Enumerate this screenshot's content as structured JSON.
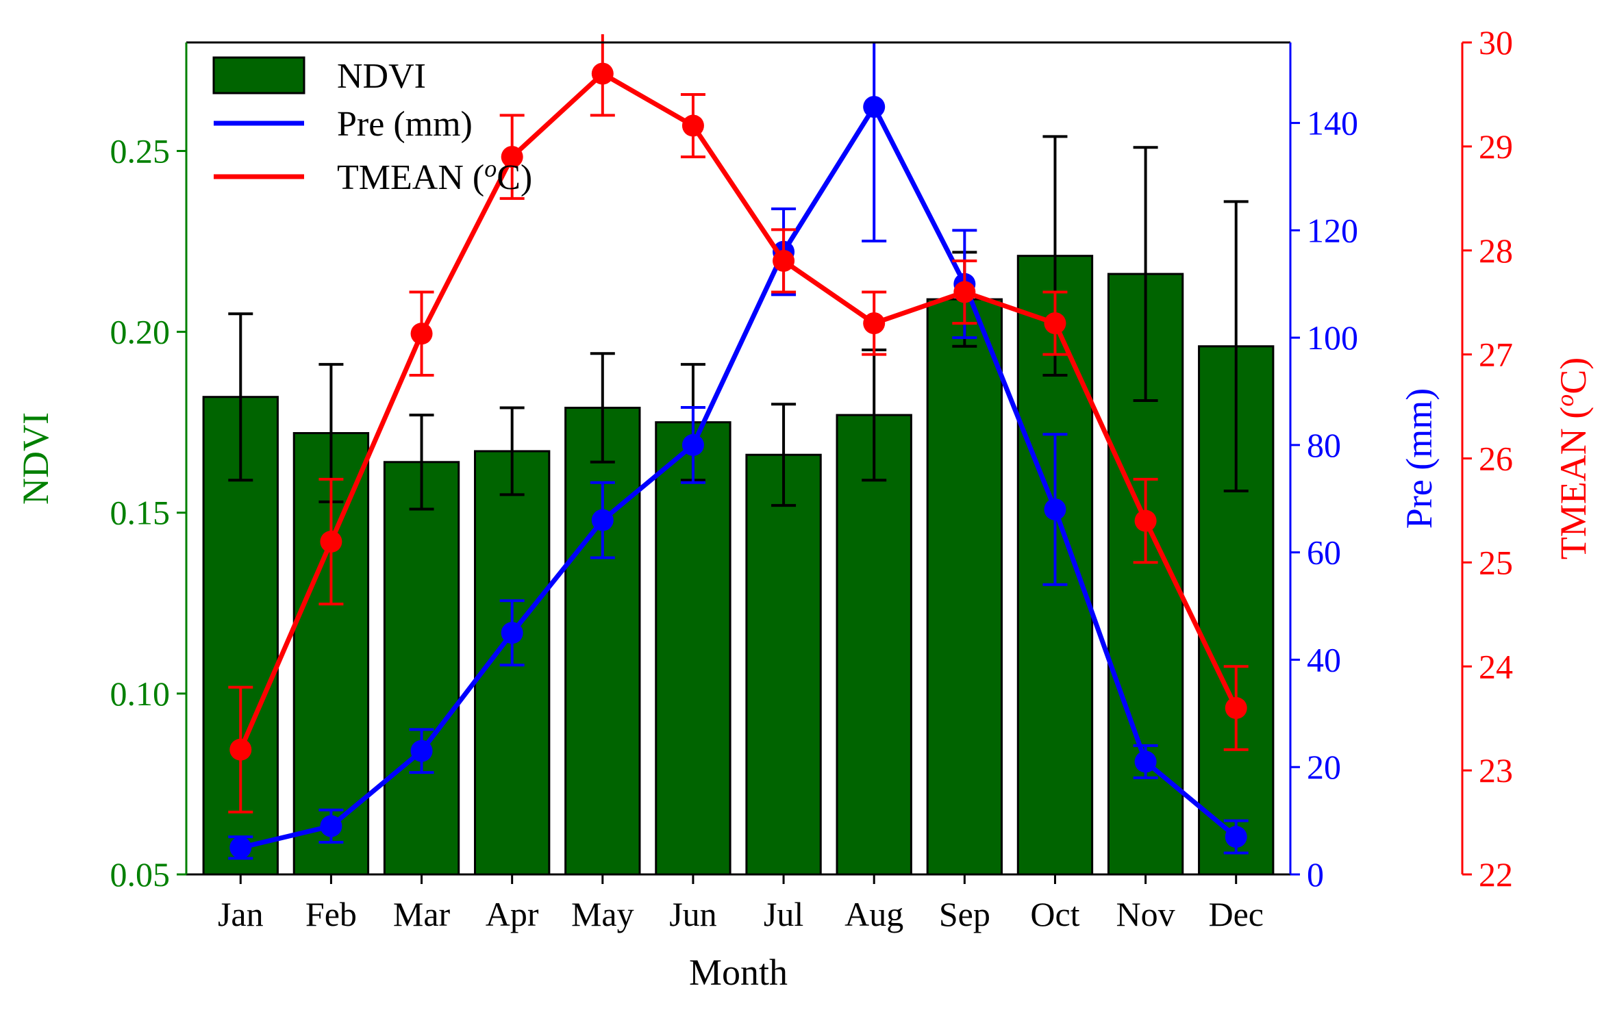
{
  "chart_data": {
    "type": "bar",
    "categories": [
      "Jan",
      "Feb",
      "Mar",
      "Apr",
      "May",
      "Jun",
      "Jul",
      "Aug",
      "Sep",
      "Oct",
      "Nov",
      "Dec"
    ],
    "xlabel": "Month",
    "axes": {
      "left": {
        "label": "NDVI",
        "color": "#008000",
        "ylim": [
          0.05,
          0.28
        ],
        "ticks": [
          "0.05",
          "0.10",
          "0.15",
          "0.20",
          "0.25"
        ],
        "tick_values": [
          0.05,
          0.1,
          0.15,
          0.2,
          0.25
        ]
      },
      "right1": {
        "label": "Pre (mm)",
        "color": "#0000ff",
        "ylim": [
          0,
          155
        ],
        "ticks": [
          "0",
          "20",
          "40",
          "60",
          "80",
          "100",
          "120",
          "140"
        ],
        "tick_values": [
          0,
          20,
          40,
          60,
          80,
          100,
          120,
          140
        ]
      },
      "right2": {
        "label": "TMEAN (",
        "label_sup": "o",
        "label_end": "C)",
        "color": "#ff0000",
        "ylim": [
          22,
          30
        ],
        "ticks": [
          "22",
          "23",
          "24",
          "25",
          "26",
          "27",
          "28",
          "29",
          "30"
        ],
        "tick_values": [
          22,
          23,
          24,
          25,
          26,
          27,
          28,
          29,
          30
        ]
      }
    },
    "series": [
      {
        "name": "NDVI",
        "kind": "bar",
        "axis": "left",
        "color": "#006400",
        "values": [
          0.182,
          0.172,
          0.164,
          0.167,
          0.179,
          0.175,
          0.166,
          0.177,
          0.209,
          0.221,
          0.216,
          0.196
        ],
        "errors": [
          0.023,
          0.019,
          0.013,
          0.012,
          0.015,
          0.016,
          0.014,
          0.018,
          0.013,
          0.033,
          0.035,
          0.04
        ]
      },
      {
        "name": "Pre (mm)",
        "kind": "line",
        "axis": "right1",
        "color": "#0000ff",
        "values": [
          5,
          9,
          23,
          45,
          66,
          80,
          116,
          143,
          110,
          68,
          21,
          7
        ],
        "errors": [
          2,
          3,
          4,
          6,
          7,
          7,
          8,
          25,
          10,
          14,
          3,
          3
        ]
      },
      {
        "name": "TMEAN (°C)",
        "kind": "line",
        "axis": "right2",
        "color": "#ff0000",
        "values": [
          23.2,
          25.2,
          27.2,
          28.9,
          29.7,
          29.2,
          27.9,
          27.3,
          27.6,
          27.3,
          25.4,
          23.6
        ],
        "errors": [
          0.6,
          0.6,
          0.4,
          0.4,
          0.4,
          0.3,
          0.3,
          0.3,
          0.3,
          0.3,
          0.4,
          0.4
        ]
      }
    ],
    "legend": {
      "placement": "top-left",
      "entries": [
        {
          "label": "NDVI",
          "series": 0
        },
        {
          "label": "Pre (mm)",
          "series": 1
        },
        {
          "label": "TMEAN (",
          "label_sup": "o",
          "label_end": "C)",
          "series": 2
        }
      ]
    },
    "grid": false
  }
}
